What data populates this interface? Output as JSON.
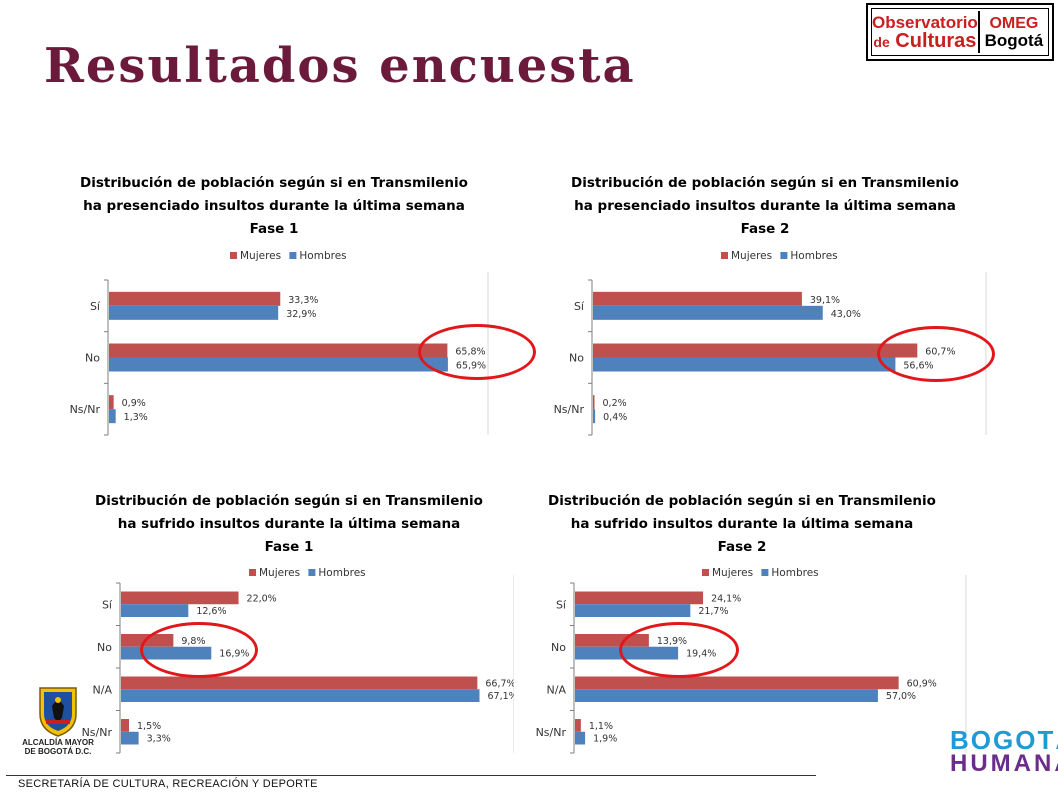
{
  "page": {
    "title": "Resultados encuesta",
    "footer": "SECRETARÍA DE CULTURA, RECREACIÓN Y DEPORTE"
  },
  "logos": {
    "observatorio_line1": "Observatorio",
    "observatorio_line2a": "de",
    "observatorio_line2b": "Culturas",
    "omeg_line1": "OMEG",
    "omeg_line2": "Bogotá",
    "alcaldia_line1": "ALCALDÍA MAYOR",
    "alcaldia_line2": "DE BOGOTÁ D.C.",
    "bogota_humana_line1": "BOGOTÁ",
    "bogota_humana_line2": "HUMANA"
  },
  "colors": {
    "mujeres": "#c0504d",
    "hombres": "#4f81bd",
    "highlight": "#e0181b",
    "title": "#6b1a3c"
  },
  "chart_data": [
    {
      "type": "bar",
      "orientation": "horizontal",
      "title": [
        "Distribución de población según si en Transmilenio",
        "ha presenciado insultos durante la última semana",
        "Fase 1"
      ],
      "categories": [
        "Sí",
        "No",
        "Ns/Nr"
      ],
      "series": [
        {
          "name": "Mujeres",
          "values": [
            33.3,
            65.8,
            0.9
          ],
          "labels": [
            "33,3%",
            "65,8%",
            "0,9%"
          ]
        },
        {
          "name": "Hombres",
          "values": [
            32.9,
            65.9,
            1.3
          ],
          "labels": [
            "32,9%",
            "65,9%",
            "1,3%"
          ]
        }
      ],
      "xlim": [
        0,
        70
      ],
      "legend": "top",
      "highlighted_category": "No"
    },
    {
      "type": "bar",
      "orientation": "horizontal",
      "title": [
        "Distribución de población según si en Transmilenio",
        "ha presenciado insultos durante la última semana",
        "Fase 2"
      ],
      "categories": [
        "Sí",
        "No",
        "Ns/Nr"
      ],
      "series": [
        {
          "name": "Mujeres",
          "values": [
            39.1,
            60.7,
            0.2
          ],
          "labels": [
            "39,1%",
            "60,7%",
            "0,2%"
          ]
        },
        {
          "name": "Hombres",
          "values": [
            43.0,
            56.6,
            0.4
          ],
          "labels": [
            "43,0%",
            "56,6%",
            "0,4%"
          ]
        }
      ],
      "xlim": [
        0,
        70
      ],
      "legend": "top",
      "highlighted_category": "No"
    },
    {
      "type": "bar",
      "orientation": "horizontal",
      "title": [
        "Distribución de población según si en Transmilenio",
        "ha sufrido insultos durante la última semana",
        "Fase 1"
      ],
      "categories": [
        "Sí",
        "No",
        "N/A",
        "Ns/Nr"
      ],
      "series": [
        {
          "name": "Mujeres",
          "values": [
            22.0,
            9.8,
            66.7,
            1.5
          ],
          "labels": [
            "22,0%",
            "9,8%",
            "66,7%",
            "1,5%"
          ]
        },
        {
          "name": "Hombres",
          "values": [
            12.6,
            16.9,
            67.1,
            3.3
          ],
          "labels": [
            "12,6%",
            "16,9%",
            "67,1%",
            "3,3%"
          ]
        }
      ],
      "xlim": [
        0,
        70
      ],
      "legend": "top",
      "highlighted_category": "No"
    },
    {
      "type": "bar",
      "orientation": "horizontal",
      "title": [
        "Distribución de población según si en Transmilenio",
        "ha sufrido insultos durante la última semana",
        "Fase 2"
      ],
      "categories": [
        "Sí",
        "No",
        "N/A",
        "Ns/Nr"
      ],
      "series": [
        {
          "name": "Mujeres",
          "values": [
            24.1,
            13.9,
            60.9,
            1.1
          ],
          "labels": [
            "24,1%",
            "13,9%",
            "60,9%",
            "1,1%"
          ]
        },
        {
          "name": "Hombres",
          "values": [
            21.7,
            19.4,
            57.0,
            1.9
          ],
          "labels": [
            "21,7%",
            "19,4%",
            "57,0%",
            "1,9%"
          ]
        }
      ],
      "xlim": [
        0,
        70
      ],
      "legend": "top",
      "highlighted_category": "No"
    }
  ]
}
